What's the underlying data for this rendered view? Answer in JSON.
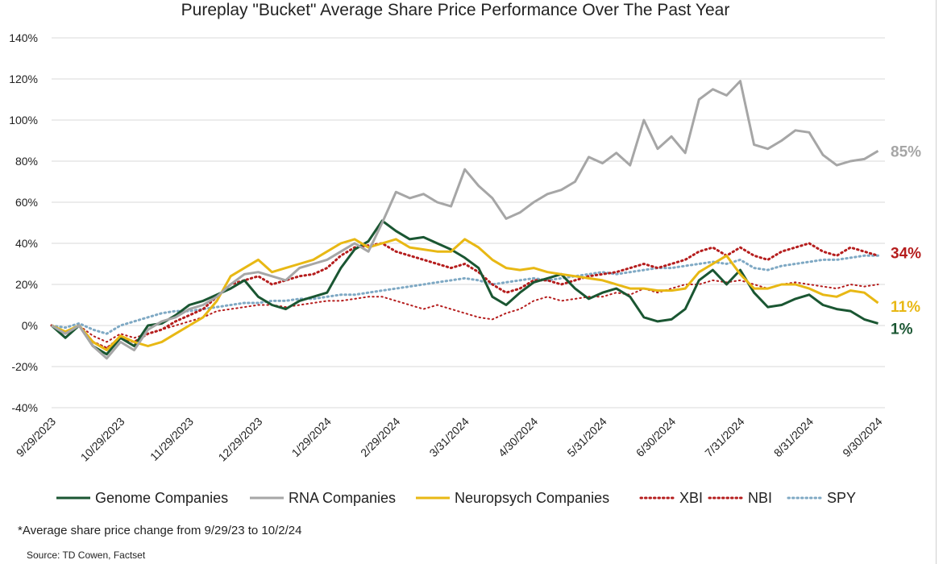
{
  "chart_data": {
    "type": "line",
    "title": "Pureplay \"Bucket\" Average Share Price Performance Over The Past Year",
    "ylim": [
      -40,
      140
    ],
    "yticks": [
      -40,
      -20,
      0,
      20,
      40,
      60,
      80,
      100,
      120,
      140
    ],
    "ytick_labels": [
      "-40%",
      "-20%",
      "0%",
      "20%",
      "40%",
      "60%",
      "80%",
      "100%",
      "120%",
      "140%"
    ],
    "xlim": [
      0,
      12.1
    ],
    "xtick_labels": [
      "9/29/2023",
      "10/29/2023",
      "11/29/2023",
      "12/29/2023",
      "1/29/2024",
      "2/29/2024",
      "3/31/2024",
      "4/30/2024",
      "5/31/2024",
      "6/30/2024",
      "7/31/2024",
      "8/31/2024",
      "9/30/2024"
    ],
    "grid": true,
    "legend_position": "bottom",
    "x_unit": "months since 9/29/2023",
    "series": [
      {
        "name": "Genome Companies",
        "color": "#1a5632",
        "style": "solid",
        "width": 3,
        "end_label": "1%",
        "x": [
          0,
          0.2,
          0.4,
          0.6,
          0.8,
          1.0,
          1.2,
          1.4,
          1.6,
          1.8,
          2.0,
          2.2,
          2.4,
          2.6,
          2.8,
          3.0,
          3.2,
          3.4,
          3.6,
          3.8,
          4.0,
          4.2,
          4.4,
          4.6,
          4.8,
          5.0,
          5.2,
          5.4,
          5.6,
          5.8,
          6.0,
          6.2,
          6.4,
          6.6,
          6.8,
          7.0,
          7.2,
          7.4,
          7.6,
          7.8,
          8.0,
          8.2,
          8.4,
          8.6,
          8.8,
          9.0,
          9.2,
          9.4,
          9.6,
          9.8,
          10.0,
          10.2,
          10.4,
          10.6,
          10.8,
          11.0,
          11.2,
          11.4,
          11.6,
          11.8,
          12.0
        ],
        "y": [
          0,
          -6,
          0,
          -10,
          -14,
          -6,
          -10,
          0,
          1,
          5,
          10,
          12,
          15,
          18,
          22,
          14,
          10,
          8,
          12,
          14,
          16,
          28,
          37,
          41,
          51,
          46,
          42,
          43,
          40,
          37,
          33,
          28,
          14,
          10,
          16,
          21,
          23,
          25,
          18,
          13,
          16,
          18,
          14,
          4,
          2,
          3,
          8,
          22,
          27,
          20,
          27,
          16,
          9,
          10,
          13,
          15,
          10,
          8,
          7,
          3,
          1
        ]
      },
      {
        "name": "RNA Companies",
        "color": "#a6a6a6",
        "style": "solid",
        "width": 3,
        "end_label": "85%",
        "x": [
          0,
          0.2,
          0.4,
          0.6,
          0.8,
          1.0,
          1.2,
          1.4,
          1.6,
          1.8,
          2.0,
          2.2,
          2.4,
          2.6,
          2.8,
          3.0,
          3.2,
          3.4,
          3.6,
          3.8,
          4.0,
          4.2,
          4.4,
          4.6,
          4.8,
          5.0,
          5.2,
          5.4,
          5.6,
          5.8,
          6.0,
          6.2,
          6.4,
          6.6,
          6.8,
          7.0,
          7.2,
          7.4,
          7.6,
          7.8,
          8.0,
          8.2,
          8.4,
          8.6,
          8.8,
          9.0,
          9.2,
          9.4,
          9.6,
          9.8,
          10.0,
          10.2,
          10.4,
          10.6,
          10.8,
          11.0,
          11.2,
          11.4,
          11.6,
          11.8,
          12.0
        ],
        "y": [
          0,
          -4,
          0,
          -10,
          -16,
          -8,
          -12,
          -2,
          2,
          4,
          8,
          10,
          14,
          20,
          25,
          26,
          24,
          22,
          28,
          30,
          32,
          36,
          40,
          36,
          50,
          65,
          62,
          64,
          60,
          58,
          76,
          68,
          62,
          52,
          55,
          60,
          64,
          66,
          70,
          82,
          79,
          84,
          78,
          100,
          86,
          92,
          84,
          110,
          115,
          112,
          119,
          88,
          86,
          90,
          95,
          94,
          83,
          78,
          80,
          81,
          85
        ]
      },
      {
        "name": "Neuropsych Companies",
        "color": "#e8b814",
        "style": "solid",
        "width": 3,
        "end_label": "11%",
        "x": [
          0,
          0.2,
          0.4,
          0.6,
          0.8,
          1.0,
          1.2,
          1.4,
          1.6,
          1.8,
          2.0,
          2.2,
          2.4,
          2.6,
          2.8,
          3.0,
          3.2,
          3.4,
          3.6,
          3.8,
          4.0,
          4.2,
          4.4,
          4.6,
          4.8,
          5.0,
          5.2,
          5.4,
          5.6,
          5.8,
          6.0,
          6.2,
          6.4,
          6.6,
          6.8,
          7.0,
          7.2,
          7.4,
          7.6,
          7.8,
          8.0,
          8.2,
          8.4,
          8.6,
          8.8,
          9.0,
          9.2,
          9.4,
          9.6,
          9.8,
          10.0,
          10.2,
          10.4,
          10.6,
          10.8,
          11.0,
          11.2,
          11.4,
          11.6,
          11.8,
          12.0
        ],
        "y": [
          0,
          -3,
          0,
          -8,
          -12,
          -5,
          -8,
          -10,
          -8,
          -4,
          0,
          4,
          12,
          24,
          28,
          32,
          26,
          28,
          30,
          32,
          36,
          40,
          42,
          38,
          40,
          42,
          38,
          37,
          36,
          36,
          42,
          38,
          32,
          28,
          27,
          28,
          26,
          25,
          24,
          23,
          22,
          20,
          18,
          18,
          17,
          17,
          18,
          26,
          30,
          34,
          25,
          18,
          18,
          20,
          20,
          18,
          15,
          14,
          17,
          16,
          11
        ]
      },
      {
        "name": "XBI",
        "color": "#b51d1d",
        "style": "dotted",
        "width": 3,
        "end_label": "34%",
        "x": [
          0,
          0.2,
          0.4,
          0.6,
          0.8,
          1.0,
          1.2,
          1.4,
          1.6,
          1.8,
          2.0,
          2.2,
          2.4,
          2.6,
          2.8,
          3.0,
          3.2,
          3.4,
          3.6,
          3.8,
          4.0,
          4.2,
          4.4,
          4.6,
          4.8,
          5.0,
          5.2,
          5.4,
          5.6,
          5.8,
          6.0,
          6.2,
          6.4,
          6.6,
          6.8,
          7.0,
          7.2,
          7.4,
          7.6,
          7.8,
          8.0,
          8.2,
          8.4,
          8.6,
          8.8,
          9.0,
          9.2,
          9.4,
          9.6,
          9.8,
          10.0,
          10.2,
          10.4,
          10.6,
          10.8,
          11.0,
          11.2,
          11.4,
          11.6,
          11.8,
          12.0
        ],
        "y": [
          0,
          -4,
          0,
          -8,
          -11,
          -6,
          -8,
          -4,
          -2,
          2,
          5,
          8,
          14,
          20,
          22,
          24,
          20,
          22,
          24,
          25,
          28,
          34,
          38,
          39,
          40,
          36,
          34,
          32,
          30,
          28,
          30,
          26,
          20,
          16,
          18,
          22,
          22,
          20,
          22,
          24,
          25,
          26,
          28,
          30,
          28,
          30,
          32,
          36,
          38,
          34,
          38,
          34,
          32,
          36,
          38,
          40,
          36,
          34,
          38,
          36,
          34
        ]
      },
      {
        "name": "NBI",
        "color": "#b51d1d",
        "style": "dotted",
        "width": 2,
        "end_label": "",
        "x": [
          0,
          0.2,
          0.4,
          0.6,
          0.8,
          1.0,
          1.2,
          1.4,
          1.6,
          1.8,
          2.0,
          2.2,
          2.4,
          2.6,
          2.8,
          3.0,
          3.2,
          3.4,
          3.6,
          3.8,
          4.0,
          4.2,
          4.4,
          4.6,
          4.8,
          5.0,
          5.2,
          5.4,
          5.6,
          5.8,
          6.0,
          6.2,
          6.4,
          6.6,
          6.8,
          7.0,
          7.2,
          7.4,
          7.6,
          7.8,
          8.0,
          8.2,
          8.4,
          8.6,
          8.8,
          9.0,
          9.2,
          9.4,
          9.6,
          9.8,
          10.0,
          10.2,
          10.4,
          10.6,
          10.8,
          11.0,
          11.2,
          11.4,
          11.6,
          11.8,
          12.0
        ],
        "y": [
          0,
          -3,
          0,
          -5,
          -8,
          -4,
          -6,
          -4,
          -2,
          0,
          2,
          4,
          7,
          8,
          9,
          10,
          10,
          9,
          10,
          11,
          12,
          12,
          13,
          14,
          14,
          12,
          10,
          8,
          10,
          8,
          6,
          4,
          3,
          6,
          8,
          12,
          14,
          12,
          13,
          14,
          14,
          16,
          15,
          18,
          16,
          18,
          20,
          20,
          22,
          21,
          22,
          20,
          18,
          20,
          21,
          20,
          19,
          18,
          20,
          19,
          20
        ]
      },
      {
        "name": "SPY",
        "color": "#7fa9c4",
        "style": "dotted",
        "width": 3,
        "end_label": "",
        "x": [
          0,
          0.2,
          0.4,
          0.6,
          0.8,
          1.0,
          1.2,
          1.4,
          1.6,
          1.8,
          2.0,
          2.2,
          2.4,
          2.6,
          2.8,
          3.0,
          3.2,
          3.4,
          3.6,
          3.8,
          4.0,
          4.2,
          4.4,
          4.6,
          4.8,
          5.0,
          5.2,
          5.4,
          5.6,
          5.8,
          6.0,
          6.2,
          6.4,
          6.6,
          6.8,
          7.0,
          7.2,
          7.4,
          7.6,
          7.8,
          8.0,
          8.2,
          8.4,
          8.6,
          8.8,
          9.0,
          9.2,
          9.4,
          9.6,
          9.8,
          10.0,
          10.2,
          10.4,
          10.6,
          10.8,
          11.0,
          11.2,
          11.4,
          11.6,
          11.8,
          12.0
        ],
        "y": [
          0,
          -1,
          1,
          -2,
          -4,
          0,
          2,
          4,
          6,
          7,
          7,
          8,
          9,
          10,
          11,
          11,
          12,
          12,
          13,
          13,
          14,
          15,
          15,
          16,
          17,
          18,
          19,
          20,
          21,
          22,
          23,
          22,
          20,
          21,
          22,
          23,
          22,
          23,
          24,
          25,
          26,
          25,
          26,
          27,
          28,
          28,
          29,
          30,
          31,
          30,
          32,
          28,
          27,
          29,
          30,
          31,
          32,
          32,
          33,
          34,
          34
        ]
      }
    ]
  },
  "footnote": "*Average share price change from 9/29/23 to 10/2/24",
  "source": "Source: TD Cowen, Factset"
}
